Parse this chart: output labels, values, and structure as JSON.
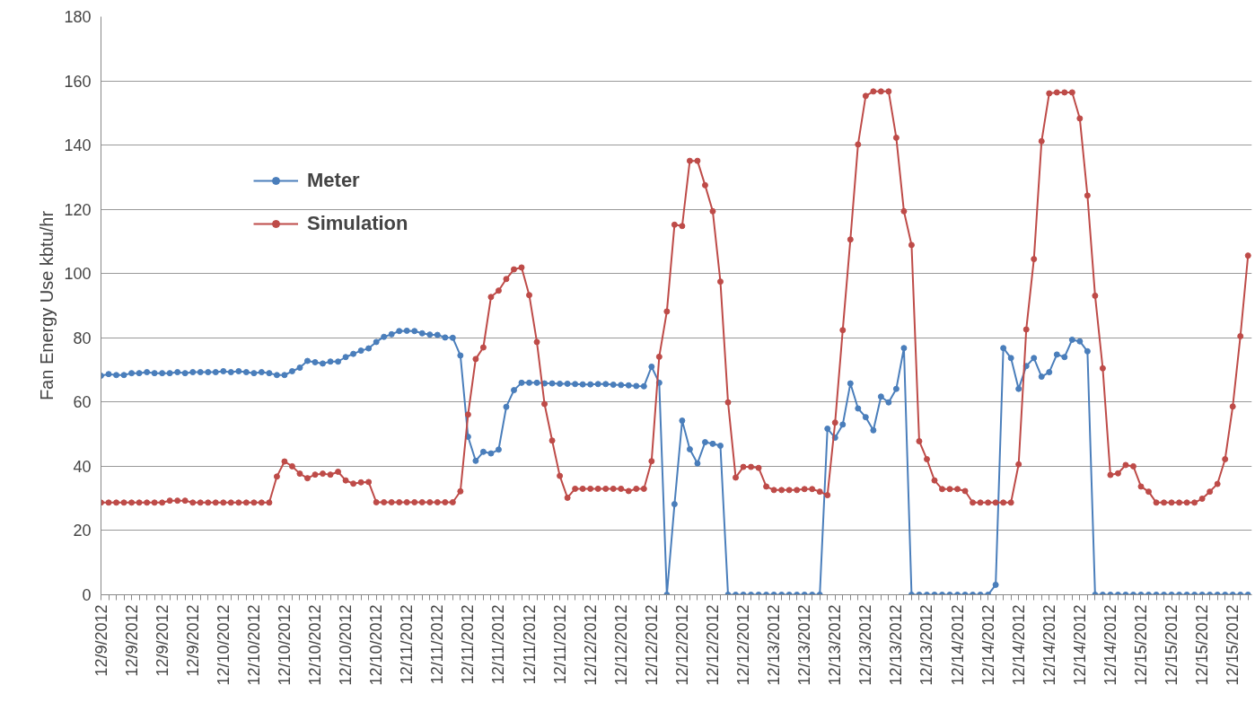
{
  "chart_data": {
    "type": "line",
    "ylabel": "Fan Energy Use kbtu/hr",
    "categories": [
      "12/9/2012",
      null,
      null,
      null,
      "12/9/2012",
      null,
      null,
      null,
      "12/9/2012",
      null,
      null,
      null,
      "12/9/2012",
      null,
      null,
      null,
      "12/10/2012",
      null,
      null,
      null,
      "12/10/2012",
      null,
      null,
      null,
      "12/10/2012",
      null,
      null,
      null,
      "12/10/2012",
      null,
      null,
      null,
      "12/10/2012",
      null,
      null,
      null,
      "12/10/2012",
      null,
      null,
      null,
      "12/11/2012",
      null,
      null,
      null,
      "12/11/2012",
      null,
      null,
      null,
      "12/11/2012",
      null,
      null,
      null,
      "12/11/2012",
      null,
      null,
      null,
      "12/11/2012",
      null,
      null,
      null,
      "12/11/2012",
      null,
      null,
      null,
      "12/12/2012",
      null,
      null,
      null,
      "12/12/2012",
      null,
      null,
      null,
      "12/12/2012",
      null,
      null,
      null,
      "12/12/2012",
      null,
      null,
      null,
      "12/12/2012",
      null,
      null,
      null,
      "12/12/2012",
      null,
      null,
      null,
      "12/13/2012",
      null,
      null,
      null,
      "12/13/2012",
      null,
      null,
      null,
      "12/13/2012",
      null,
      null,
      null,
      "12/13/2012",
      null,
      null,
      null,
      "12/13/2012",
      null,
      null,
      null,
      "12/13/2012",
      null,
      null,
      null,
      "12/14/2012",
      null,
      null,
      null,
      "12/14/2012",
      null,
      null,
      null,
      "12/14/2012",
      null,
      null,
      null,
      "12/14/2012",
      null,
      null,
      null,
      "12/14/2012",
      null,
      null,
      null,
      "12/14/2012",
      null,
      null,
      null,
      "12/15/2012",
      null,
      null,
      null,
      "12/15/2012",
      null,
      null,
      null,
      "12/15/2012",
      null,
      null,
      null,
      "12/15/2012",
      null,
      null
    ],
    "series": [
      {
        "name": "Meter",
        "color": "#4a7ebb",
        "values": [
          68.2,
          68.7,
          68.4,
          68.4,
          69,
          69,
          69.3,
          69,
          69,
          69,
          69.3,
          69,
          69.3,
          69.3,
          69.3,
          69.3,
          69.6,
          69.3,
          69.6,
          69.3,
          69,
          69.3,
          69,
          68.4,
          68.4,
          69.6,
          70.7,
          72.8,
          72.4,
          72,
          72.6,
          72.6,
          74,
          75,
          76,
          76.7,
          78.7,
          80.3,
          81.1,
          82.1,
          82.2,
          82.1,
          81.4,
          81,
          80.9,
          80.1,
          80,
          74.5,
          49.2,
          41.7,
          44.5,
          44,
          45.2,
          58.5,
          63.7,
          66,
          66,
          66,
          65.8,
          65.8,
          65.7,
          65.7,
          65.6,
          65.5,
          65.5,
          65.6,
          65.6,
          65.4,
          65.3,
          65.2,
          65,
          64.9,
          71,
          66,
          0,
          28.2,
          54.2,
          45.3,
          40.9,
          47.5,
          47,
          46.4,
          0,
          0,
          0,
          0,
          0,
          0,
          0,
          0,
          0,
          0,
          0,
          0,
          0,
          51.7,
          48.9,
          53,
          65.8,
          58,
          55.3,
          51.2,
          61.7,
          59.9,
          64.1,
          76.8,
          0,
          0,
          0,
          0,
          0,
          0,
          0,
          0,
          0,
          0,
          0,
          3.1,
          76.8,
          73.7,
          64.1,
          71.2,
          73.7,
          67.9,
          69.3,
          74.8,
          74,
          79.4,
          78.9,
          75.8,
          0,
          0,
          0,
          0,
          0,
          0,
          0,
          0,
          0,
          0,
          0,
          0,
          0,
          0,
          0,
          0,
          0,
          0,
          0,
          0,
          0
        ]
      },
      {
        "name": "Simulation",
        "color": "#be4b48",
        "values": [
          28.7,
          28.7,
          28.7,
          28.7,
          28.7,
          28.7,
          28.7,
          28.7,
          28.7,
          29.3,
          29.3,
          29.3,
          28.7,
          28.7,
          28.7,
          28.7,
          28.7,
          28.7,
          28.7,
          28.7,
          28.7,
          28.7,
          28.7,
          36.8,
          41.5,
          40,
          37.7,
          36.3,
          37.4,
          37.7,
          37.4,
          38.3,
          35.6,
          34.6,
          35,
          35.1,
          28.8,
          28.8,
          28.8,
          28.8,
          28.8,
          28.8,
          28.8,
          28.8,
          28.8,
          28.8,
          28.8,
          32.2,
          56.1,
          73.4,
          77,
          92.7,
          94.7,
          98.3,
          101.3,
          101.9,
          93.3,
          78.7,
          59.4,
          48,
          37,
          30.2,
          33,
          33,
          33,
          33,
          33,
          33,
          33,
          32.3,
          33,
          33,
          41.6,
          74.1,
          88.2,
          115.2,
          114.8,
          135.1,
          135.1,
          127.5,
          119.4,
          97.5,
          59.9,
          36.5,
          39.8,
          39.8,
          39.5,
          33.7,
          32.6,
          32.6,
          32.6,
          32.6,
          32.9,
          32.9,
          32.1,
          31,
          53.6,
          82.4,
          110.6,
          140.2,
          155.3,
          156.7,
          156.7,
          156.7,
          142.3,
          119.4,
          108.9,
          47.8,
          42.2,
          35.6,
          32.9,
          32.9,
          32.9,
          32.3,
          28.7,
          28.7,
          28.7,
          28.7,
          28.7,
          28.7,
          40.6,
          82.6,
          104.5,
          141.2,
          156.1,
          156.4,
          156.4,
          156.4,
          148.3,
          124.3,
          93.1,
          70.5,
          37.3,
          37.8,
          40.4,
          40,
          33.7,
          32.1,
          28.7,
          28.7,
          28.7,
          28.7,
          28.7,
          28.7,
          29.9,
          32.1,
          34.5,
          42.2,
          58.6,
          80.5,
          105.6
        ]
      }
    ],
    "ylim": [
      0,
      180
    ],
    "yticks": [
      0,
      20,
      40,
      60,
      80,
      100,
      120,
      140,
      160,
      180
    ],
    "grid": "y",
    "legend": "top left",
    "marker": "circle"
  }
}
